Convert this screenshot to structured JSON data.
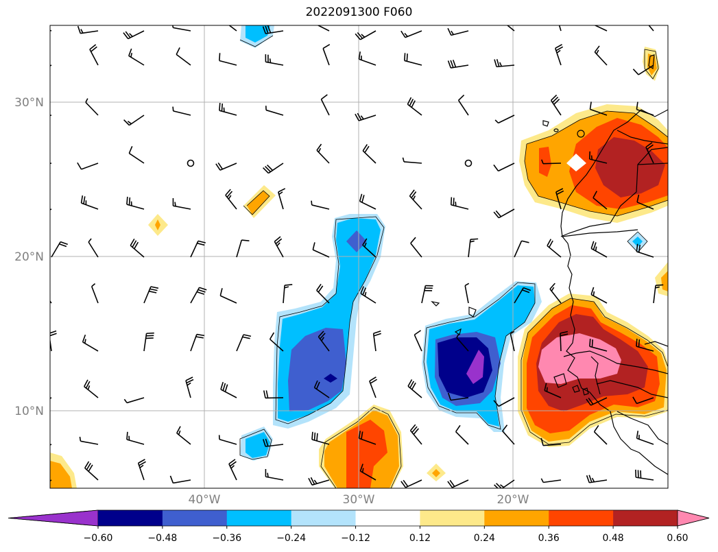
{
  "title": "2022091300 F060",
  "map": {
    "lon_range": [
      -50,
      -10
    ],
    "lat_range": [
      5,
      35
    ],
    "gridlines": true,
    "lat_ticks": [
      {
        "value": 30,
        "label": "30°N"
      },
      {
        "value": 20,
        "label": "20°N"
      },
      {
        "value": 10,
        "label": "10°N"
      }
    ],
    "lon_ticks": [
      {
        "value": -40,
        "label": "40°W"
      },
      {
        "value": -30,
        "label": "30°W"
      },
      {
        "value": -20,
        "label": "20°W"
      }
    ],
    "wind_barbs": true,
    "coastlines": true
  },
  "colorbar": {
    "orientation": "horizontal",
    "extend": "both",
    "levels": [
      "−0.60",
      "−0.48",
      "−0.36",
      "−0.24",
      "−0.12",
      "0.12",
      "0.24",
      "0.36",
      "0.48",
      "0.60"
    ],
    "colors": [
      "#9932cc",
      "#00008b",
      "#3f5fcf",
      "#00bfff",
      "#b3e3fb",
      "#ffffff",
      "#fde98a",
      "#ffa500",
      "#ff4500",
      "#b22222",
      "#ff88b0"
    ]
  }
}
